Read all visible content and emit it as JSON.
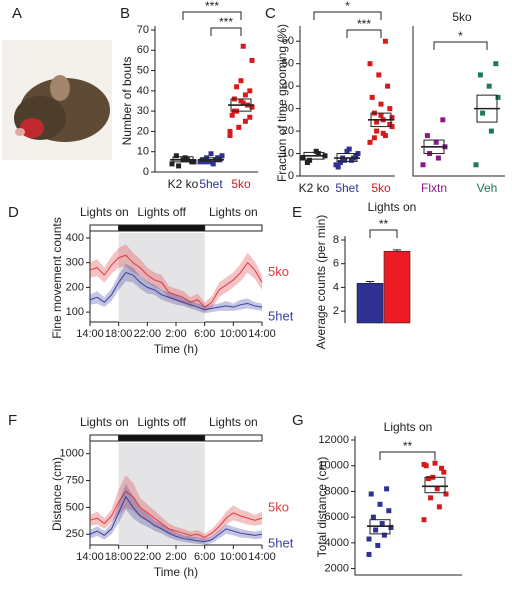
{
  "panels": [
    "A",
    "B",
    "C",
    "D",
    "E",
    "F",
    "G"
  ],
  "chart_data": [
    {
      "type": "strip",
      "ylabel": "Number of bouts",
      "ylim": [
        0,
        70
      ],
      "yticks": [
        0,
        10,
        20,
        30,
        40,
        50,
        60,
        70
      ],
      "categories": [
        "K2 ko",
        "5het",
        "5ko"
      ],
      "annotations": [
        "***",
        "***"
      ],
      "groups": [
        {
          "color": "#222222",
          "values": [
            4,
            6,
            3,
            5,
            7,
            8,
            5,
            6
          ],
          "mean": 6,
          "box": [
            5,
            7.5
          ]
        },
        {
          "color": "#2e3192",
          "values": [
            5,
            6,
            7,
            8,
            4,
            5,
            6,
            9,
            6,
            7,
            5
          ],
          "mean": 6,
          "box": [
            5.3,
            7
          ]
        },
        {
          "color": "#d7191c",
          "values": [
            20,
            25,
            30,
            32,
            34,
            36,
            40,
            45,
            28,
            33,
            22,
            18,
            38,
            42,
            55,
            62,
            30,
            27,
            35
          ],
          "mean": 33,
          "box": [
            30,
            36
          ]
        }
      ]
    },
    {
      "type": "strip",
      "ylabel": "Fraction of time grooming (%)",
      "ylim": [
        0,
        65
      ],
      "yticks": [
        0,
        10,
        20,
        30,
        40,
        50,
        60
      ],
      "categories": [
        "K2 ko",
        "5het",
        "5ko"
      ],
      "annotations": [
        "*",
        "***"
      ],
      "groups": [
        {
          "color": "#222222",
          "values": [
            8,
            10,
            7,
            9,
            11,
            6
          ],
          "mean": 9,
          "box": [
            7.5,
            10.5
          ]
        },
        {
          "color": "#2e3192",
          "values": [
            5,
            7,
            8,
            10,
            12,
            6,
            9,
            11,
            4,
            8,
            7
          ],
          "mean": 8,
          "box": [
            6.5,
            10
          ]
        },
        {
          "color": "#d7191c",
          "values": [
            15,
            18,
            20,
            22,
            25,
            28,
            30,
            32,
            35,
            40,
            45,
            50,
            60,
            24,
            26,
            19,
            17,
            23,
            27
          ],
          "mean": 25,
          "box": [
            22,
            28
          ]
        }
      ]
    },
    {
      "type": "strip",
      "title": "5ko",
      "ylim": [
        0,
        65
      ],
      "categories": [
        "Flxtn",
        "Veh"
      ],
      "annotations": [
        "*"
      ],
      "groups": [
        {
          "color": "#8b1a89",
          "values": [
            5,
            8,
            10,
            13,
            15,
            18,
            25
          ],
          "mean": 13,
          "box": [
            10,
            16
          ]
        },
        {
          "color": "#1a7a5a",
          "values": [
            5,
            20,
            28,
            35,
            40,
            45,
            50
          ],
          "mean": 30,
          "box": [
            24,
            36
          ]
        }
      ]
    },
    {
      "type": "line",
      "ylabel": "Fine movement counts",
      "xlabel": "Time (h)",
      "ylim": [
        60,
        420
      ],
      "yticks": [
        100,
        200,
        300,
        400
      ],
      "xlim": [
        0,
        24
      ],
      "xticks": [
        {
          "value": 0,
          "label": "14:00"
        },
        {
          "value": 4,
          "label": "18:00"
        },
        {
          "value": 8,
          "label": "22:00"
        },
        {
          "value": 12,
          "label": "2:00"
        },
        {
          "value": 16,
          "label": "6:00"
        },
        {
          "value": 20,
          "label": "10:00"
        },
        {
          "value": 24,
          "label": "14:00"
        }
      ],
      "light_periods": [
        {
          "label": "Lights on",
          "start": 0,
          "end": 4,
          "dark": false
        },
        {
          "label": "Lights off",
          "start": 4,
          "end": 16,
          "dark": true
        },
        {
          "label": "Lights on",
          "start": 16,
          "end": 24,
          "dark": false
        }
      ],
      "x": [
        0,
        1,
        2,
        3,
        4,
        5,
        6,
        7,
        8,
        9,
        10,
        11,
        12,
        13,
        14,
        15,
        16,
        17,
        18,
        19,
        20,
        21,
        22,
        23,
        24
      ],
      "series": [
        {
          "name": "5ko",
          "color": "#e0393e",
          "values": [
            270,
            280,
            250,
            290,
            320,
            330,
            300,
            280,
            250,
            230,
            220,
            180,
            170,
            160,
            140,
            150,
            120,
            140,
            190,
            210,
            230,
            260,
            300,
            270,
            220
          ],
          "errors": [
            30,
            35,
            30,
            35,
            40,
            45,
            40,
            35,
            30,
            30,
            30,
            25,
            25,
            25,
            20,
            25,
            20,
            25,
            30,
            30,
            30,
            35,
            40,
            35,
            30
          ]
        },
        {
          "name": "5het",
          "color": "#3b3f9e",
          "values": [
            150,
            160,
            140,
            170,
            220,
            260,
            250,
            220,
            200,
            190,
            170,
            160,
            150,
            140,
            130,
            120,
            110,
            115,
            120,
            125,
            120,
            130,
            135,
            125,
            120
          ],
          "errors": [
            20,
            25,
            20,
            25,
            30,
            35,
            30,
            25,
            25,
            20,
            20,
            20,
            20,
            15,
            15,
            15,
            15,
            15,
            15,
            20,
            15,
            20,
            20,
            15,
            15
          ]
        }
      ]
    },
    {
      "type": "bar",
      "title": "Lights on",
      "ylabel": "Average counts (per min)",
      "ylim": [
        1,
        8
      ],
      "yticks": [
        2,
        4,
        6,
        8
      ],
      "annotations": [
        "**"
      ],
      "values": [
        4.35,
        7.05
      ],
      "errors": [
        0.15,
        0.12
      ],
      "colors": [
        "#2e3192",
        "#ed1c24"
      ]
    },
    {
      "type": "line",
      "ylabel": "Distance (cm)",
      "xlabel": "Time (h)",
      "ylim": [
        150,
        1100
      ],
      "yticks": [
        250,
        500,
        750,
        1000
      ],
      "xlim": [
        0,
        24
      ],
      "xticks": [
        {
          "value": 0,
          "label": "14:00"
        },
        {
          "value": 4,
          "label": "18:00"
        },
        {
          "value": 8,
          "label": "22:00"
        },
        {
          "value": 12,
          "label": "2:00"
        },
        {
          "value": 16,
          "label": "6:00"
        },
        {
          "value": 20,
          "label": "10:00"
        },
        {
          "value": 24,
          "label": "14:00"
        }
      ],
      "light_periods": [
        {
          "label": "Lights on",
          "start": 0,
          "end": 4,
          "dark": false
        },
        {
          "label": "Lights off",
          "start": 4,
          "end": 16,
          "dark": true
        },
        {
          "label": "Lights on",
          "start": 16,
          "end": 24,
          "dark": false
        }
      ],
      "x": [
        0,
        1,
        2,
        3,
        4,
        5,
        6,
        7,
        8,
        9,
        10,
        11,
        12,
        13,
        14,
        15,
        16,
        17,
        18,
        19,
        20,
        21,
        22,
        23,
        24
      ],
      "series": [
        {
          "name": "5ko",
          "color": "#e0393e",
          "values": [
            380,
            400,
            350,
            420,
            550,
            650,
            600,
            500,
            450,
            400,
            350,
            300,
            280,
            260,
            240,
            250,
            220,
            260,
            320,
            400,
            450,
            420,
            400,
            380,
            400
          ],
          "errors": [
            50,
            60,
            50,
            60,
            120,
            150,
            130,
            90,
            80,
            70,
            60,
            50,
            40,
            40,
            35,
            40,
            35,
            40,
            50,
            60,
            70,
            60,
            60,
            50,
            60
          ]
        },
        {
          "name": "5het",
          "color": "#3b3f9e",
          "values": [
            250,
            280,
            240,
            300,
            450,
            600,
            500,
            420,
            380,
            330,
            300,
            260,
            230,
            210,
            200,
            190,
            180,
            200,
            250,
            300,
            280,
            260,
            250,
            240,
            250
          ],
          "errors": [
            40,
            45,
            40,
            50,
            90,
            120,
            100,
            70,
            60,
            50,
            45,
            40,
            35,
            30,
            30,
            30,
            30,
            30,
            40,
            45,
            40,
            40,
            35,
            35,
            40
          ]
        }
      ]
    },
    {
      "type": "strip",
      "title": "Lights on",
      "ylabel": "Total distance (cm)",
      "ylim": [
        1500,
        12000
      ],
      "yticks": [
        2000,
        4000,
        6000,
        8000,
        10000,
        12000
      ],
      "annotations": [
        "**"
      ],
      "groups": [
        {
          "color": "#2e3192",
          "values": [
            4300,
            4600,
            5000,
            5200,
            5500,
            6000,
            6500,
            7000,
            7800,
            8200,
            3800,
            3100
          ],
          "mean": 5300,
          "box": [
            4700,
            5800
          ]
        },
        {
          "color": "#d7191c",
          "values": [
            5800,
            6800,
            7500,
            7800,
            8200,
            9000,
            9500,
            10200,
            10000,
            9800,
            9100,
            10100
          ],
          "mean": 8400,
          "box": [
            7900,
            9100
          ]
        }
      ]
    }
  ]
}
